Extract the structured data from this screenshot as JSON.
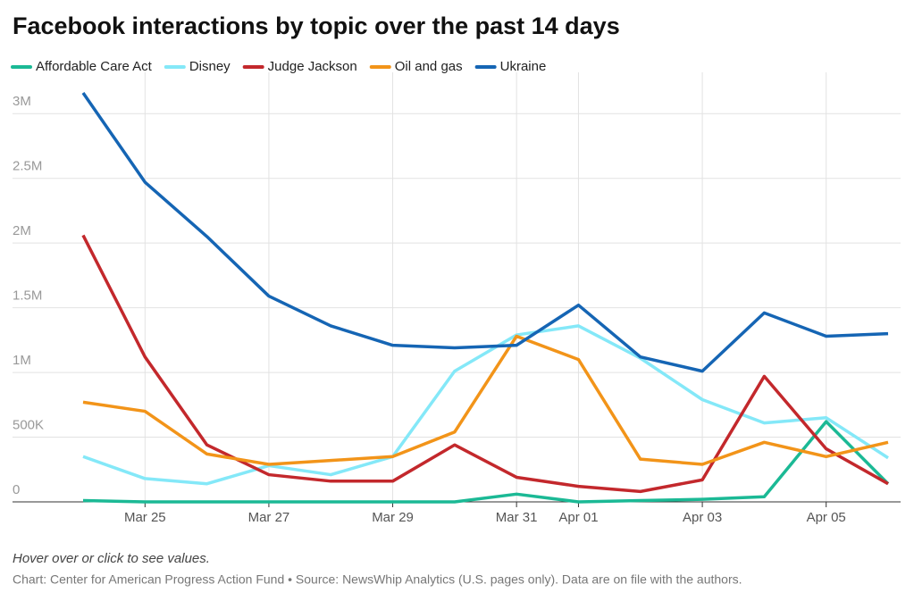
{
  "chart_data": {
    "type": "line",
    "title": "Facebook interactions by topic over the past 14 days",
    "categories": [
      null,
      "Mar 25",
      null,
      "Mar 27",
      null,
      "Mar 29",
      null,
      "Mar 31",
      "Apr 01",
      null,
      "Apr 03",
      null,
      "Apr 05",
      null
    ],
    "series": [
      {
        "name": "Affordable Care Act",
        "color": "#1bb995",
        "values": [
          10000,
          0,
          0,
          0,
          0,
          0,
          0,
          60000,
          0,
          10000,
          20000,
          40000,
          620000,
          140000
        ]
      },
      {
        "name": "Disney",
        "color": "#84e8f8",
        "values": [
          350000,
          180000,
          140000,
          280000,
          210000,
          350000,
          1010000,
          1290000,
          1360000,
          1110000,
          790000,
          610000,
          650000,
          340000
        ]
      },
      {
        "name": "Judge Jackson",
        "color": "#c3282c",
        "values": [
          2060000,
          1120000,
          440000,
          210000,
          160000,
          160000,
          440000,
          190000,
          120000,
          80000,
          170000,
          970000,
          410000,
          140000
        ]
      },
      {
        "name": "Oil and gas",
        "color": "#f29419",
        "values": [
          770000,
          700000,
          370000,
          290000,
          320000,
          350000,
          540000,
          1280000,
          1100000,
          330000,
          290000,
          460000,
          350000,
          460000
        ]
      },
      {
        "name": "Ukraine",
        "color": "#1565b4",
        "values": [
          3160000,
          2470000,
          2050000,
          1590000,
          1360000,
          1210000,
          1190000,
          1210000,
          1520000,
          1120000,
          1010000,
          1460000,
          1280000,
          1300000
        ]
      }
    ],
    "ylim": [
      0,
      3250000
    ],
    "yticks": [
      0,
      {
        "value": 500000,
        "label": "500K"
      },
      {
        "value": 1000000,
        "label": "1M"
      },
      {
        "value": 1500000,
        "label": "1.5M"
      },
      {
        "value": 2000000,
        "label": "2M"
      },
      {
        "value": 2500000,
        "label": "2.5M"
      },
      {
        "value": 3000000,
        "label": "3M"
      }
    ],
    "grid": true,
    "legend": "top",
    "note": "Hover over or click to see values.",
    "source": "Chart: Center for American Progress Action Fund • Source: NewsWhip Analytics (U.S. pages only). Data are on file with the authors."
  }
}
